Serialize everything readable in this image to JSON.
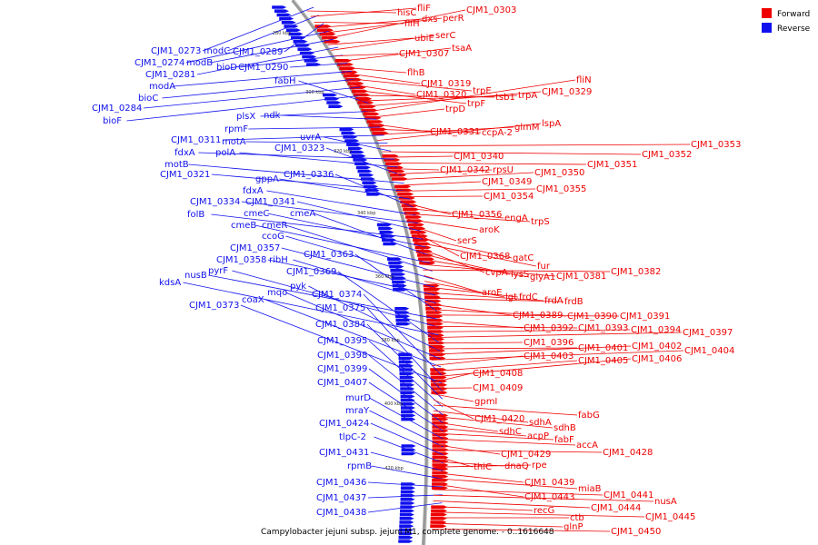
{
  "caption": "Campylobacter jejuni subsp. jejuni M1, complete genome. - 0..1616648",
  "legend": [
    {
      "label": "Forward",
      "color": "#ee0000"
    },
    {
      "label": "Reverse",
      "color": "#1010ee"
    }
  ],
  "scale_ticks": [
    "280 kbp",
    "300 kbp",
    "320 kbp",
    "340 kbp",
    "360 kbp",
    "380 kbp",
    "400 kbp",
    "420 kbp"
  ],
  "reverse_labels": [
    "CJM1_0273",
    "modC",
    "CJM1_0289",
    "CJM1_0274",
    "modB",
    "CJM1_0281",
    "bioD",
    "CJM1_0290",
    "modA",
    "bioC",
    "CJM1_0284",
    "bioF",
    "fabH",
    "plsX",
    "ndk",
    "rpmF",
    "CJM1_0311",
    "motA",
    "uvrA",
    "fdxA",
    "polA",
    "CJM1_0323",
    "motB",
    "CJM1_0321",
    "gppA",
    "CJM1_0336",
    "fdxA",
    "CJM1_0334",
    "CJM1_0341",
    "folB",
    "cmeC",
    "cmeA",
    "cmeB",
    "cmeR",
    "ccoG",
    "CJM1_0357",
    "CJM1_0358",
    "ribH",
    "CJM1_0363",
    "nusB",
    "pyrF",
    "kdsA",
    "CJM1_0369",
    "pyk",
    "mqo",
    "coaX",
    "CJM1_0374",
    "CJM1_0373",
    "CJM1_0375",
    "CJM1_0384",
    "CJM1_0395",
    "CJM1_0398",
    "CJM1_0399",
    "CJM1_0407",
    "murD",
    "mraY",
    "CJM1_0424",
    "tlpC-2",
    "CJM1_0431",
    "rpmB",
    "CJM1_0436",
    "CJM1_0437",
    "CJM1_0438"
  ],
  "forward_labels": [
    "hisC",
    "fliF",
    "fliH",
    "dxs",
    "perR",
    "CJM1_0303",
    "ubiE",
    "serC",
    "CJM1_0307",
    "tsaA",
    "flhB",
    "CJM1_0319",
    "trpE",
    "CJM1_0320",
    "trpF",
    "tsb1",
    "trpA",
    "CJM1_0329",
    "fliN",
    "trpD",
    "CJM1_0331",
    "ccpA-2",
    "glmM",
    "lspA",
    "CJM1_0353",
    "CJM1_0352",
    "CJM1_0340",
    "CJM1_0351",
    "CJM1_0342",
    "rpsU",
    "CJM1_0350",
    "CJM1_0349",
    "CJM1_0355",
    "CJM1_0354",
    "CJM1_0356",
    "engA",
    "trpS",
    "aroK",
    "serS",
    "CJM1_0368",
    "gatC",
    "fur",
    "cvpA",
    "lysS",
    "glyA1",
    "CJM1_0381",
    "CJM1_0382",
    "aroE",
    "lgt",
    "frdC",
    "frdA",
    "frdB",
    "CJM1_0389",
    "CJM1_0390",
    "CJM1_0391",
    "CJM1_0392",
    "CJM1_0393",
    "CJM1_0394",
    "CJM1_0397",
    "CJM1_0396",
    "CJM1_0401",
    "CJM1_0402",
    "CJM1_0404",
    "CJM1_0403",
    "CJM1_0405",
    "CJM1_0406",
    "CJM1_0408",
    "CJM1_0409",
    "gpmI",
    "CJM1_0420",
    "fabG",
    "sdhA",
    "sdhB",
    "sdhC",
    "acpP",
    "fabF",
    "accA",
    "CJM1_0429",
    "CJM1_0428",
    "thiC",
    "dnaQ",
    "rpe",
    "CJM1_0439",
    "miaB",
    "CJM1_0443",
    "CJM1_0441",
    "nusA",
    "CJM1_0444",
    "recG",
    "CJM1_0445",
    "ctb",
    "glnP",
    "CJM1_0450"
  ],
  "colors": {
    "forward": "#ee0000",
    "reverse": "#1010ee",
    "backbone": "#999999"
  }
}
